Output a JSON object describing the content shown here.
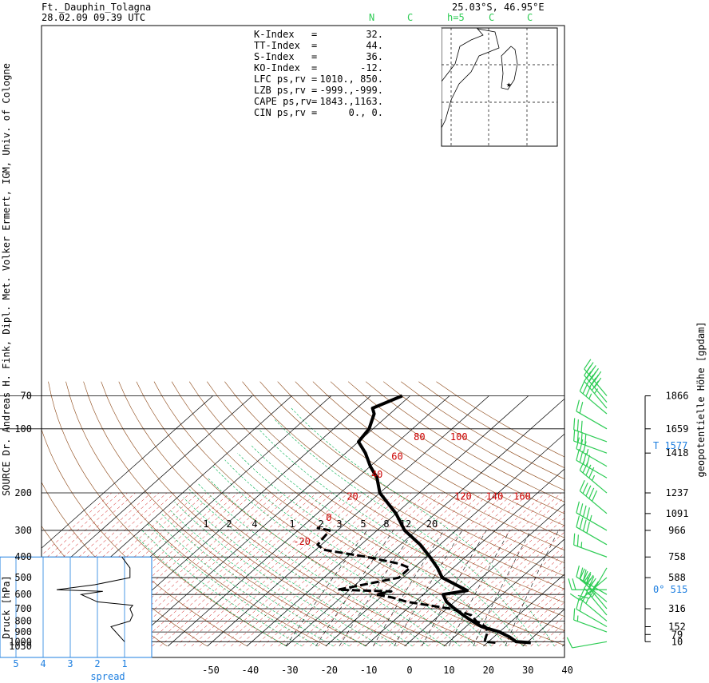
{
  "header": {
    "station": "Ft._Dauphin_Tolagna",
    "datetime": "28.02.09  09.39 UTC",
    "location": "25.03°S, 46.95°E",
    "legend": [
      "N",
      "C",
      "h=5",
      "C",
      "C"
    ]
  },
  "indices": [
    {
      "label": "K-Index",
      "eq": "=",
      "value": "32."
    },
    {
      "label": "TT-Index",
      "eq": "=",
      "value": "44."
    },
    {
      "label": "S-Index",
      "eq": "=",
      "value": "36."
    },
    {
      "label": "KO-Index",
      "eq": "=",
      "value": "-12."
    },
    {
      "label": "LFC  ps,rv",
      "eq": "=",
      "value": "1010.,  850."
    },
    {
      "label": "LZB  ps,rv",
      "eq": "=",
      "value": "-999.,-999."
    },
    {
      "label": "CAPE ps,rv",
      "eq": "=",
      "value": "1843.,1163."
    },
    {
      "label": "CIN  ps,rv",
      "eq": "=",
      "value": "0.,    0."
    }
  ],
  "side_labels": {
    "left": "SOURCE Dr. Andreas H. Fink, Dipl. Met. Volker Ermert, IGM, Univ. of Cologne",
    "left_axis": "Druck [hPa]",
    "right_axis": "geopotentielle Höhe [gpdam]",
    "spread": "spread"
  },
  "right_marks": [
    {
      "text": "T  1577",
      "p": 120
    },
    {
      "text": "0°   515",
      "p": 570
    }
  ],
  "chart_data": {
    "type": "line",
    "title": "Ft._Dauphin_Tolagna",
    "ylabel": "Druck [hPa]",
    "y2label": "geopotentielle Höhe [gpdam]",
    "pressure_levels": [
      70,
      100,
      200,
      300,
      400,
      500,
      600,
      700,
      800,
      900,
      1000,
      1050
    ],
    "height_labels": [
      {
        "p": 70,
        "h": "1866"
      },
      {
        "p": 100,
        "h": "1659"
      },
      {
        "p": 130,
        "h": "1418"
      },
      {
        "p": 200,
        "h": "1237"
      },
      {
        "p": 250,
        "h": "1091"
      },
      {
        "p": 300,
        "h": "966"
      },
      {
        "p": 400,
        "h": "758"
      },
      {
        "p": 500,
        "h": "588"
      },
      {
        "p": 700,
        "h": "316"
      },
      {
        "p": 850,
        "h": "152"
      },
      {
        "p": 925,
        "h": "79"
      },
      {
        "p": 1000,
        "h": "10"
      }
    ],
    "temperature_ticks": [
      -50,
      -40,
      -30,
      -20,
      -10,
      0,
      10,
      20,
      30,
      40
    ],
    "spread_ticks": [
      5,
      4,
      3,
      2,
      1
    ],
    "mixing_ratio_labels": [
      "1",
      "2",
      "4",
      "1",
      "2",
      "3",
      "5",
      "8",
      "12",
      "20"
    ],
    "isotherm_labels": [
      {
        "text": "80",
        "t": -55,
        "p": 113
      },
      {
        "text": "100",
        "t": -45,
        "p": 113
      },
      {
        "text": "60",
        "t": -55,
        "p": 140
      },
      {
        "text": "40",
        "t": -55,
        "p": 170
      },
      {
        "text": "20",
        "t": -55,
        "p": 215
      },
      {
        "text": "0",
        "t": -55,
        "p": 270
      },
      {
        "text": "-20",
        "t": -55,
        "p": 350
      },
      {
        "text": "120",
        "t": -27,
        "p": 215
      },
      {
        "text": "140",
        "t": -19,
        "p": 215
      },
      {
        "text": "160",
        "t": -12,
        "p": 215
      }
    ],
    "series": [
      {
        "name": "T",
        "kind": "temperature",
        "points": [
          [
            1010,
            31
          ],
          [
            1000,
            27
          ],
          [
            950,
            24
          ],
          [
            900,
            20
          ],
          [
            850,
            14
          ],
          [
            800,
            10
          ],
          [
            750,
            6
          ],
          [
            700,
            2
          ],
          [
            650,
            -2
          ],
          [
            600,
            -5
          ],
          [
            575,
            0
          ],
          [
            500,
            -10
          ],
          [
            450,
            -14
          ],
          [
            400,
            -19
          ],
          [
            350,
            -25
          ],
          [
            300,
            -33
          ],
          [
            250,
            -40
          ],
          [
            200,
            -50
          ],
          [
            170,
            -55
          ],
          [
            150,
            -60
          ],
          [
            130,
            -65
          ],
          [
            115,
            -70
          ],
          [
            100,
            -71
          ],
          [
            85,
            -74
          ],
          [
            80,
            -76
          ],
          [
            70,
            -72
          ]
        ]
      },
      {
        "name": "Td",
        "kind": "dewpoint",
        "points": [
          [
            1010,
            22
          ],
          [
            1000,
            19
          ],
          [
            950,
            18
          ],
          [
            900,
            17
          ],
          [
            850,
            15
          ],
          [
            800,
            11
          ],
          [
            750,
            8
          ],
          [
            700,
            1
          ],
          [
            650,
            -12
          ],
          [
            620,
            -17
          ],
          [
            600,
            -22
          ],
          [
            580,
            -19
          ],
          [
            570,
            -33
          ],
          [
            540,
            -28
          ],
          [
            500,
            -21
          ],
          [
            450,
            -21
          ],
          [
            430,
            -25
          ],
          [
            400,
            -35
          ],
          [
            370,
            -48
          ],
          [
            350,
            -51
          ],
          [
            300,
            -52
          ],
          [
            292,
            -56
          ]
        ]
      },
      {
        "name": "spread",
        "kind": "spread",
        "points": [
          [
            1000,
            1
          ],
          [
            850,
            1.5
          ],
          [
            800,
            0.8
          ],
          [
            750,
            0.7
          ],
          [
            700,
            0.8
          ],
          [
            675,
            0.7
          ],
          [
            650,
            2
          ],
          [
            600,
            2.6
          ],
          [
            580,
            1.8
          ],
          [
            570,
            3.5
          ],
          [
            540,
            2.1
          ],
          [
            500,
            0.8
          ],
          [
            450,
            0.8
          ],
          [
            400,
            1.1
          ]
        ]
      }
    ]
  },
  "wind_barbs": [
    {
      "p": 1000,
      "dir": 260,
      "kt": 10
    },
    {
      "p": 900,
      "dir": 290,
      "kt": 15
    },
    {
      "p": 850,
      "dir": 300,
      "kt": 20
    },
    {
      "p": 800,
      "dir": 310,
      "kt": 25
    },
    {
      "p": 750,
      "dir": 320,
      "kt": 35
    },
    {
      "p": 700,
      "dir": 320,
      "kt": 40
    },
    {
      "p": 650,
      "dir": 310,
      "kt": 40
    },
    {
      "p": 600,
      "dir": 300,
      "kt": 35
    },
    {
      "p": 570,
      "dir": 270,
      "kt": 20
    },
    {
      "p": 500,
      "dir": 230,
      "kt": 10
    },
    {
      "p": 450,
      "dir": 210,
      "kt": 15
    },
    {
      "p": 400,
      "dir": 290,
      "kt": 25
    },
    {
      "p": 350,
      "dir": 300,
      "kt": 40
    },
    {
      "p": 300,
      "dir": 300,
      "kt": 45
    },
    {
      "p": 250,
      "dir": 310,
      "kt": 50
    },
    {
      "p": 200,
      "dir": 310,
      "kt": 45
    },
    {
      "p": 170,
      "dir": 300,
      "kt": 40
    },
    {
      "p": 150,
      "dir": 300,
      "kt": 35
    },
    {
      "p": 130,
      "dir": 290,
      "kt": 40
    },
    {
      "p": 115,
      "dir": 290,
      "kt": 30
    },
    {
      "p": 100,
      "dir": 300,
      "kt": 20
    },
    {
      "p": 85,
      "dir": 310,
      "kt": 35
    },
    {
      "p": 80,
      "dir": 320,
      "kt": 45
    },
    {
      "p": 75,
      "dir": 320,
      "kt": 50
    },
    {
      "p": 70,
      "dir": 320,
      "kt": 50
    }
  ],
  "colors": {
    "temp": "#000000",
    "dewpoint": "#000000",
    "isotherm": "#cc0000",
    "dryadiabat": "#8b4513",
    "moistadiabat": "#00b050",
    "mixing": "#000000",
    "spread": "#1e7fe0",
    "wind": "#2ecc55"
  }
}
